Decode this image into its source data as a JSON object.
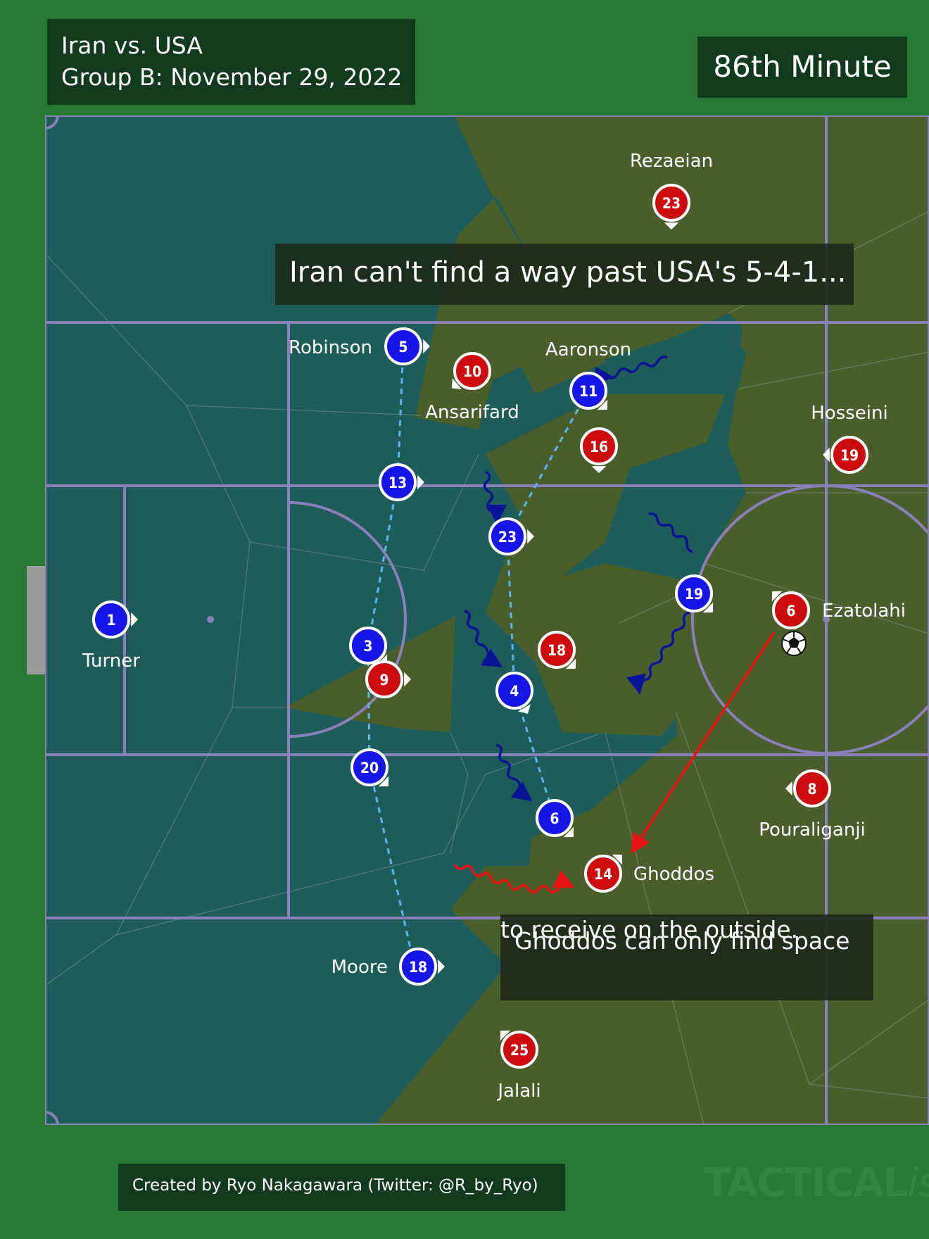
{
  "header": {
    "match": "Iran vs. USA",
    "group_date": "Group B: November 29, 2022",
    "minute": "86th Minute"
  },
  "annotations": {
    "top": "Iran can't find a way past USA's 5-4-1...",
    "bottom_line1": "Ghoddos can only find space",
    "bottom_line2": "to receive on the outside."
  },
  "credit": "Created by Ryo Nakagawara (Twitter: @R_by_Ryo)",
  "watermark": {
    "main": "TACTICAL",
    "ital": "ista"
  },
  "colors": {
    "usa": "#1616e8",
    "iran": "#cc0c0c",
    "usa_zone": "#1d5c58",
    "iran_zone": "#4a5e2b",
    "pitch_lines": "#8a7fb8",
    "run_arrow": "#0a1496",
    "pass": "#ee1111",
    "shape_link": "#5fb4ee",
    "background": "#267a33"
  },
  "players": {
    "usa": [
      {
        "num": "1",
        "name": "Turner"
      },
      {
        "num": "5",
        "name": "Robinson"
      },
      {
        "num": "13",
        "name": ""
      },
      {
        "num": "3",
        "name": ""
      },
      {
        "num": "20",
        "name": ""
      },
      {
        "num": "18",
        "name": "Moore"
      },
      {
        "num": "11",
        "name": "Aaronson"
      },
      {
        "num": "23",
        "name": ""
      },
      {
        "num": "4",
        "name": ""
      },
      {
        "num": "6",
        "name": ""
      },
      {
        "num": "19",
        "name": ""
      }
    ],
    "iran": [
      {
        "num": "23",
        "name": "Rezaeian"
      },
      {
        "num": "10",
        "name": "Ansarifard"
      },
      {
        "num": "16",
        "name": ""
      },
      {
        "num": "19",
        "name": "Hosseini"
      },
      {
        "num": "6",
        "name": "Ezatolahi"
      },
      {
        "num": "18",
        "name": ""
      },
      {
        "num": "9",
        "name": ""
      },
      {
        "num": "8",
        "name": "Pouraliganji"
      },
      {
        "num": "14",
        "name": "Ghoddos"
      },
      {
        "num": "25",
        "name": "Jalali"
      }
    ]
  }
}
